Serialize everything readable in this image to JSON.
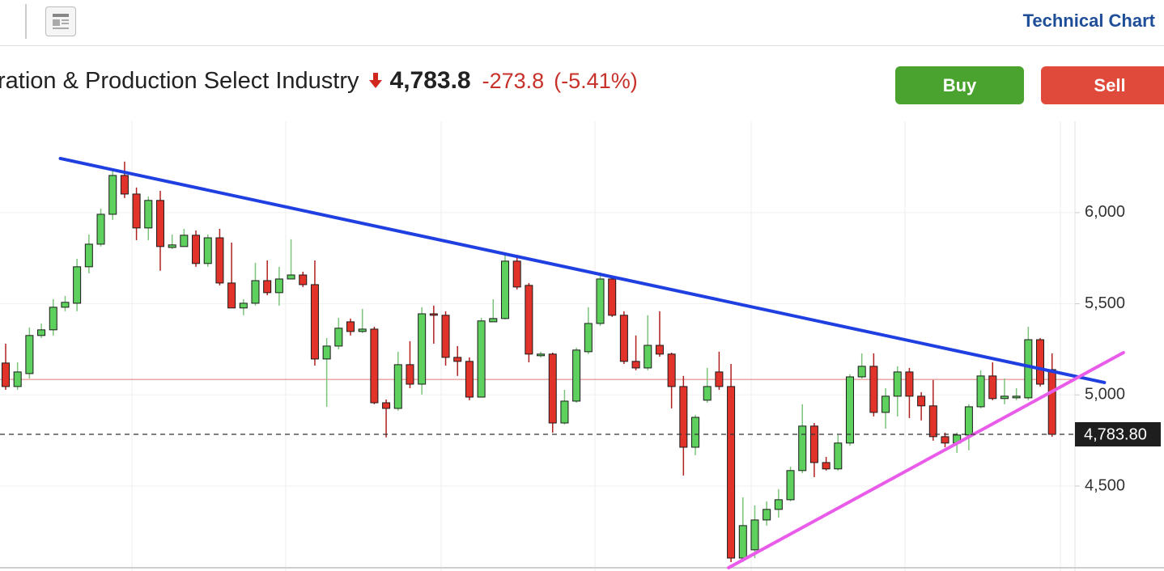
{
  "header": {
    "title": "Technical Chart"
  },
  "instrument": {
    "name": "ration & Production Select Industry",
    "price": "4,783.8",
    "change": "-273.8",
    "change_pct": "(-5.41%)"
  },
  "buttons": [
    "Buy",
    "Sell"
  ],
  "chart_data": {
    "type": "candlestick",
    "up_color": "#5ed05e",
    "down_color": "#e2332b",
    "open": [
      5175,
      5046,
      5117,
      5326,
      5357,
      5481,
      5503,
      5703,
      5827,
      5991,
      6204,
      6102,
      5916,
      6067,
      5809,
      5814,
      5876,
      5721,
      5862,
      5614,
      5477,
      5503,
      5627,
      5561,
      5636,
      5658,
      5605,
      5197,
      5268,
      5401,
      5348,
      5361,
      4957,
      4926,
      5166,
      5059,
      5445,
      5437,
      5206,
      5184,
      4988,
      5401,
      5419,
      5734,
      5601,
      5215,
      5224,
      4846,
      4966,
      5237,
      5392,
      5636,
      5437,
      5184,
      5148,
      5272,
      5224,
      5046,
      4713,
      4971,
      5126,
      5046,
      4105,
      4150,
      4314,
      4372,
      4425,
      4585,
      4829,
      4629,
      4594,
      4736,
      5099,
      5157,
      4904,
      4993,
      5126,
      4993,
      4940,
      4771,
      4736,
      4780,
      4935,
      5104,
      4980,
      4984,
      4984,
      5303,
      5139
    ],
    "high": [
      5281,
      5179,
      5370,
      5392,
      5525,
      5543,
      5747,
      5880,
      6022,
      6235,
      6280,
      6138,
      6089,
      6120,
      5880,
      5911,
      5902,
      5880,
      5911,
      5836,
      5525,
      5725,
      5738,
      5703,
      5854,
      5676,
      5738,
      5312,
      5423,
      5419,
      5472,
      5374,
      4975,
      5237,
      5295,
      5481,
      5490,
      5459,
      5268,
      5206,
      5423,
      5525,
      5769,
      5769,
      5614,
      5237,
      5232,
      5028,
      5259,
      5481,
      5672,
      5650,
      5459,
      5326,
      5437,
      5459,
      5232,
      5104,
      4891,
      5148,
      5237,
      5170,
      4438,
      4394,
      4416,
      4483,
      4607,
      4949,
      4846,
      4660,
      4780,
      5113,
      5228,
      5228,
      5037,
      5157,
      5148,
      5015,
      5082,
      4793,
      4793,
      4949,
      5135,
      5179,
      5090,
      5037,
      5374,
      5312,
      5228
    ],
    "low": [
      5028,
      5028,
      5090,
      5312,
      5326,
      5459,
      5459,
      5667,
      5814,
      5960,
      6080,
      5849,
      5849,
      5681,
      5800,
      5814,
      5703,
      5703,
      5601,
      5477,
      5437,
      5490,
      5547,
      5490,
      5636,
      5592,
      5161,
      4935,
      5250,
      5326,
      5339,
      4949,
      4767,
      4913,
      5037,
      5002,
      5281,
      5161,
      5104,
      4971,
      4988,
      5401,
      5414,
      5579,
      5179,
      5206,
      4793,
      4838,
      4957,
      5224,
      5379,
      5428,
      5170,
      5135,
      5135,
      5210,
      4926,
      4558,
      4669,
      4957,
      5028,
      4083,
      4083,
      4105,
      4283,
      4327,
      4416,
      4571,
      4549,
      4585,
      4585,
      4722,
      5090,
      4882,
      4815,
      4882,
      4873,
      4860,
      4749,
      4713,
      4682,
      4696,
      4926,
      4971,
      4949,
      4971,
      4971,
      5046,
      4771
    ],
    "close": [
      5046,
      5126,
      5326,
      5357,
      5481,
      5508,
      5703,
      5827,
      5991,
      6204,
      6102,
      5916,
      6067,
      5814,
      5823,
      5876,
      5721,
      5862,
      5614,
      5477,
      5503,
      5627,
      5561,
      5636,
      5658,
      5605,
      5197,
      5268,
      5366,
      5348,
      5361,
      4957,
      4926,
      5166,
      5059,
      5445,
      5437,
      5206,
      5184,
      4988,
      5406,
      5419,
      5734,
      5592,
      5224,
      5224,
      4846,
      4966,
      5246,
      5392,
      5636,
      5437,
      5184,
      5148,
      5272,
      5224,
      5046,
      4713,
      4877,
      5046,
      5046,
      4105,
      4283,
      4314,
      4372,
      4425,
      4585,
      4829,
      4629,
      4594,
      4736,
      5099,
      5157,
      4904,
      4993,
      5126,
      4993,
      4940,
      4771,
      4736,
      4780,
      4935,
      5104,
      4980,
      4993,
      4993,
      5303,
      5059,
      4783.8
    ],
    "ylim": [
      4034,
      6501
    ],
    "yticks": [
      {
        "value": 4500,
        "label": "4,500"
      },
      {
        "value": 5000,
        "label": "5,000"
      },
      {
        "value": 5500,
        "label": "5,500"
      },
      {
        "value": 6000,
        "label": "6,000"
      }
    ],
    "grid": true,
    "reference_line": {
      "value": 5085,
      "color": "#e07a7a"
    },
    "last_price": {
      "value": 4783.8,
      "label": "4,783.80"
    },
    "trendlines": [
      {
        "color": "#1f3fe0",
        "x": [
          4.6,
          92.4
        ],
        "y": [
          6297,
          5068
        ]
      },
      {
        "color": "#e95ce9",
        "x": [
          60.8,
          94.0
        ],
        "y": [
          4052,
          5232
        ]
      }
    ]
  }
}
